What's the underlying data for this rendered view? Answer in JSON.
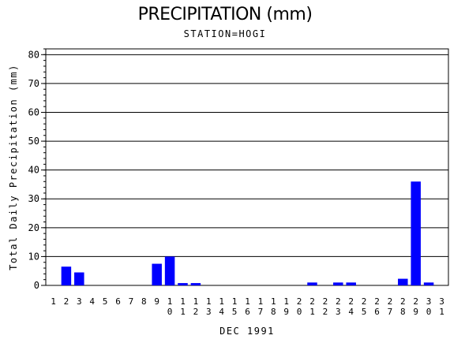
{
  "chart_data": {
    "type": "bar",
    "title": "PRECIPITATION (mm)",
    "subtitle": "STATION=HOGI",
    "xlabel": "DEC 1991",
    "ylabel": "Total Daily Precipitation (mm)",
    "ylim": [
      0,
      82
    ],
    "yticks": [
      0,
      10,
      20,
      30,
      40,
      50,
      60,
      70,
      80
    ],
    "grid": true,
    "bar_color": "#0000ff",
    "categories": [
      "1",
      "2",
      "3",
      "4",
      "5",
      "6",
      "7",
      "8",
      "9",
      "10",
      "11",
      "12",
      "13",
      "14",
      "15",
      "16",
      "17",
      "18",
      "19",
      "20",
      "21",
      "22",
      "23",
      "24",
      "25",
      "26",
      "27",
      "28",
      "29",
      "30",
      "31"
    ],
    "values": [
      0,
      6.5,
      4.5,
      0,
      0,
      0,
      0,
      0,
      7.5,
      10,
      0.8,
      0.8,
      0,
      0,
      0,
      0,
      0,
      0,
      0,
      0,
      1,
      0,
      1,
      1,
      0,
      0,
      0,
      2.3,
      36,
      1,
      0
    ]
  }
}
